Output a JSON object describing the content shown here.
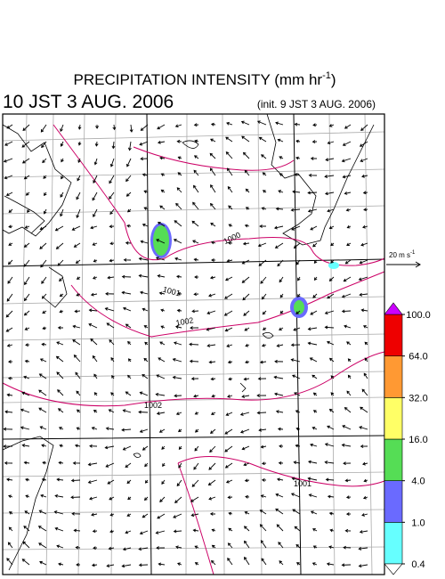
{
  "header": {
    "title": "PRECIPITATION INTENSITY (mm hr",
    "title_sup": "-1",
    "title_end": ")",
    "valid_time": "10 JST 3 AUG. 2006",
    "init_time": "(init. 9 JST 3 AUG. 2006)"
  },
  "wind_scale": {
    "text": "20 m s",
    "sup": "-1"
  },
  "contour_labels": [
    "1000",
    "1001",
    "1002",
    "1002",
    "1001"
  ],
  "colorbar": {
    "ticks": [
      0.4,
      {
        "value": 1,
        "label": "1.0"
      },
      {
        "value": 4,
        "label": "4.0"
      },
      {
        "value": 16,
        "label": "16.0"
      },
      {
        "value": 32,
        "label": "32.0"
      },
      {
        "value": 64,
        "label": "64.0"
      },
      {
        "value": 100,
        "label": "100.0"
      }
    ],
    "colors": [
      "#66ffff",
      "#6a6aff",
      "#55dd55",
      "#ffff66",
      "#ff9933",
      "#ee0000"
    ],
    "over_color": "#cc00ff",
    "under_color": "#ffffff"
  }
}
